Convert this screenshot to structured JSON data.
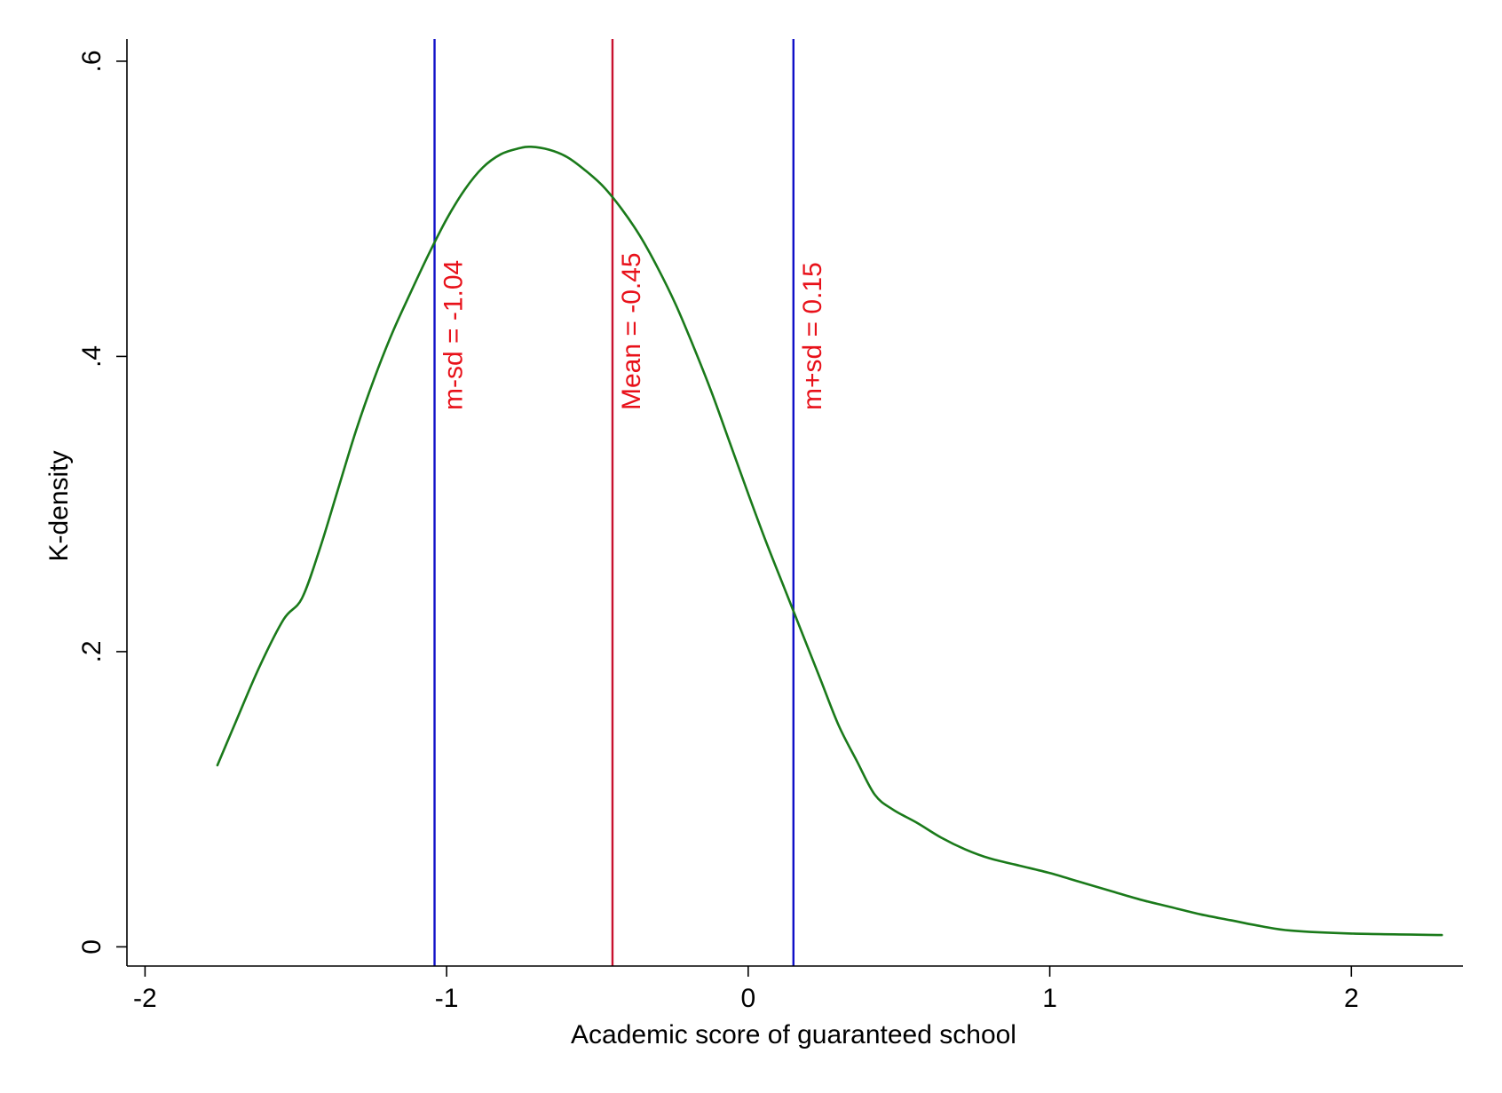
{
  "chart_data": {
    "type": "line",
    "title": "",
    "xlabel": "Academic score of guaranteed school",
    "ylabel": "K-density",
    "xlim": [
      -2.06,
      2.37
    ],
    "ylim": [
      -0.013,
      0.615
    ],
    "x_ticks": [
      {
        "value": -2,
        "label": "-2"
      },
      {
        "value": -1,
        "label": "-1"
      },
      {
        "value": 0,
        "label": "0"
      },
      {
        "value": 1,
        "label": "1"
      },
      {
        "value": 2,
        "label": "2"
      }
    ],
    "y_ticks": [
      {
        "value": 0,
        "label": "0"
      },
      {
        "value": 0.2,
        "label": ".2"
      },
      {
        "value": 0.4,
        "label": ".4"
      },
      {
        "value": 0.6,
        "label": ".6"
      }
    ],
    "grid": false,
    "legend": "none",
    "series": [
      {
        "color": "#1a7a1a",
        "points": [
          [
            -1.76,
            0.123
          ],
          [
            -1.7,
            0.152
          ],
          [
            -1.62,
            0.19
          ],
          [
            -1.54,
            0.222
          ],
          [
            -1.48,
            0.236
          ],
          [
            -1.42,
            0.27
          ],
          [
            -1.36,
            0.31
          ],
          [
            -1.3,
            0.35
          ],
          [
            -1.24,
            0.385
          ],
          [
            -1.18,
            0.416
          ],
          [
            -1.12,
            0.443
          ],
          [
            -1.06,
            0.469
          ],
          [
            -1.0,
            0.493
          ],
          [
            -0.94,
            0.513
          ],
          [
            -0.88,
            0.528
          ],
          [
            -0.82,
            0.537
          ],
          [
            -0.76,
            0.541
          ],
          [
            -0.72,
            0.542
          ],
          [
            -0.66,
            0.54
          ],
          [
            -0.6,
            0.535
          ],
          [
            -0.54,
            0.526
          ],
          [
            -0.48,
            0.515
          ],
          [
            -0.42,
            0.5
          ],
          [
            -0.36,
            0.482
          ],
          [
            -0.3,
            0.46
          ],
          [
            -0.24,
            0.435
          ],
          [
            -0.18,
            0.406
          ],
          [
            -0.12,
            0.375
          ],
          [
            -0.06,
            0.341
          ],
          [
            0.0,
            0.307
          ],
          [
            0.06,
            0.274
          ],
          [
            0.12,
            0.243
          ],
          [
            0.18,
            0.212
          ],
          [
            0.24,
            0.181
          ],
          [
            0.3,
            0.15
          ],
          [
            0.36,
            0.126
          ],
          [
            0.42,
            0.103
          ],
          [
            0.48,
            0.093
          ],
          [
            0.56,
            0.084
          ],
          [
            0.64,
            0.074
          ],
          [
            0.72,
            0.066
          ],
          [
            0.8,
            0.06
          ],
          [
            0.9,
            0.055
          ],
          [
            1.0,
            0.05
          ],
          [
            1.1,
            0.044
          ],
          [
            1.2,
            0.038
          ],
          [
            1.3,
            0.032
          ],
          [
            1.4,
            0.027
          ],
          [
            1.5,
            0.022
          ],
          [
            1.6,
            0.018
          ],
          [
            1.7,
            0.014
          ],
          [
            1.8,
            0.011
          ],
          [
            2.0,
            0.009
          ],
          [
            2.3,
            0.008
          ]
        ]
      }
    ],
    "reference_lines": [
      {
        "x": -1.04,
        "label": "m-sd = -1.04",
        "color": "#1010c8"
      },
      {
        "x": -0.45,
        "label": "Mean = -0.45",
        "color": "#c8102e"
      },
      {
        "x": 0.15,
        "label": "m+sd = 0.15",
        "color": "#1010c8"
      }
    ],
    "label_color": "#e8111a"
  }
}
